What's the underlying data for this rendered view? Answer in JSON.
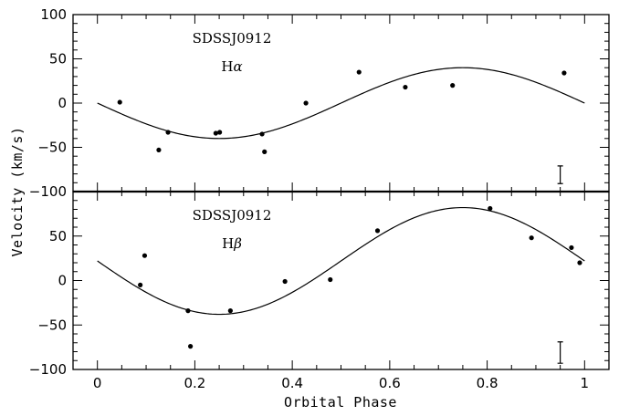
{
  "chart_data": {
    "type": "scatter",
    "xlabel": "Orbital Phase",
    "ylabel": "Velocity (km/s)",
    "xlim": [
      -0.05,
      1.05
    ],
    "x_ticks": [
      "0",
      "0.2",
      "0.4",
      "0.6",
      "0.8",
      "1"
    ],
    "panels": [
      {
        "object_label": "SDSSJ0912",
        "line_label": "Hα",
        "line_base": "H",
        "line_greek": "α",
        "ylim": [
          -100,
          100
        ],
        "y_ticks": [
          "100",
          "50",
          "0",
          "−50",
          "−100"
        ],
        "fit": {
          "type": "sine",
          "gamma": 0,
          "amplitude": 40,
          "phase_of_minimum": 0.25
        },
        "points": [
          {
            "x": 0.046,
            "y": 1
          },
          {
            "x": 0.126,
            "y": -53
          },
          {
            "x": 0.145,
            "y": -33
          },
          {
            "x": 0.243,
            "y": -34
          },
          {
            "x": 0.251,
            "y": -33
          },
          {
            "x": 0.338,
            "y": -35
          },
          {
            "x": 0.343,
            "y": -55
          },
          {
            "x": 0.428,
            "y": 0
          },
          {
            "x": 0.537,
            "y": 35
          },
          {
            "x": 0.632,
            "y": 18
          },
          {
            "x": 0.729,
            "y": 20
          },
          {
            "x": 0.958,
            "y": 34
          }
        ],
        "error_bar": {
          "x": 0.95,
          "y": -81,
          "half": 10
        }
      },
      {
        "object_label": "SDSSJ0912",
        "line_label": "Hβ",
        "line_base": "H",
        "line_greek": "β",
        "ylim": [
          -100,
          100
        ],
        "y_ticks": [
          "50",
          "0",
          "−50",
          "−100"
        ],
        "fit": {
          "type": "sine",
          "gamma": 22,
          "amplitude": 60,
          "phase_of_minimum": 0.25
        },
        "points": [
          {
            "x": 0.088,
            "y": -5
          },
          {
            "x": 0.097,
            "y": 28
          },
          {
            "x": 0.186,
            "y": -34
          },
          {
            "x": 0.191,
            "y": -74
          },
          {
            "x": 0.273,
            "y": -34
          },
          {
            "x": 0.385,
            "y": -1
          },
          {
            "x": 0.478,
            "y": 1
          },
          {
            "x": 0.575,
            "y": 56
          },
          {
            "x": 0.806,
            "y": 81
          },
          {
            "x": 0.891,
            "y": 48
          },
          {
            "x": 0.973,
            "y": 37
          },
          {
            "x": 0.99,
            "y": 20
          }
        ],
        "error_bar": {
          "x": 0.95,
          "y": -81,
          "half": 12
        }
      }
    ]
  }
}
